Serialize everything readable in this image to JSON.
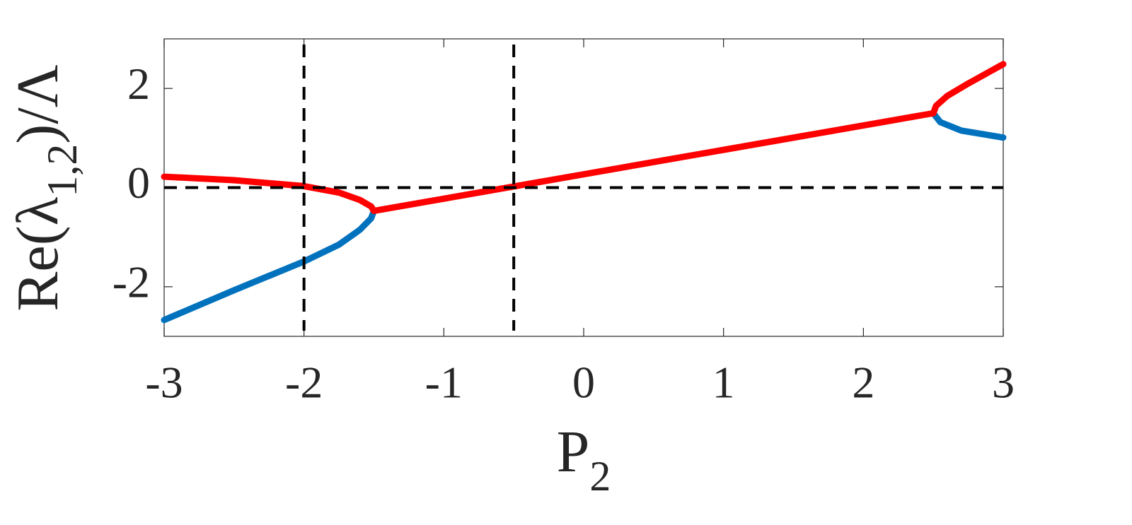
{
  "chart_data": {
    "type": "line",
    "xlabel": [
      "P",
      "2"
    ],
    "ylabel": [
      "Re(λ",
      "1,2",
      ")/Λ"
    ],
    "xlim": [
      -3,
      3
    ],
    "ylim": [
      -3,
      3
    ],
    "xticks": [
      -3,
      -2,
      -1,
      0,
      1,
      2,
      3
    ],
    "yticks": [
      -2,
      0,
      2
    ],
    "grid": false,
    "vlines": [
      -2,
      -0.5
    ],
    "hlines": [
      0
    ],
    "series": [
      {
        "color": "#0072bd",
        "x": [
          -3,
          -2.5,
          -2,
          -1.75,
          -1.6,
          -1.52,
          -1.5,
          null,
          2.5,
          2.55,
          2.7,
          3
        ],
        "values": [
          -2.67,
          -2.07,
          -1.49,
          -1.15,
          -0.85,
          -0.62,
          -0.47,
          null,
          1.5,
          1.32,
          1.15,
          1.01
        ]
      },
      {
        "color": "#ff0000",
        "x": [
          -3,
          -2.5,
          -2,
          -1.75,
          -1.6,
          -1.52,
          -1.5,
          2.5,
          2.52,
          2.6,
          2.75,
          3
        ],
        "values": [
          0.22,
          0.15,
          0.03,
          -0.1,
          -0.25,
          -0.38,
          -0.47,
          1.5,
          1.65,
          1.85,
          2.1,
          2.49
        ]
      }
    ]
  }
}
